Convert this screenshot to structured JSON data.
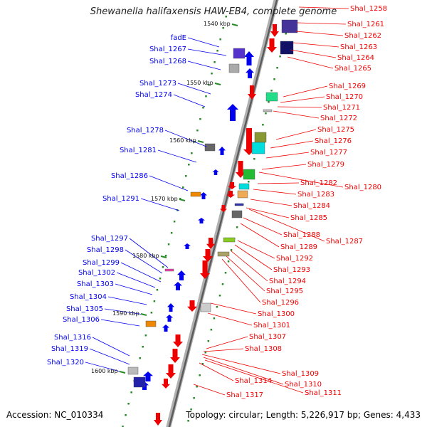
{
  "title": "Shewanella halifaxensis HAW-EB4, complete genome",
  "footer": {
    "accession": "Accession: NC_010334",
    "topology": "Topology: circular; Length: 5,226,917 bp; Genes: 4,433"
  },
  "colors": {
    "backbone": "#8a8a8a",
    "left_strand": "#0000ee",
    "right_strand": "#ee0000",
    "tick_mark": "#2a8a2a"
  },
  "ticks": [
    "1540 kbp",
    "1550 kbp",
    "1560 kbp",
    "1570 kbp",
    "1580 kbp",
    "1590 kbp",
    "1600 kbp"
  ],
  "left_genes": [
    "fadE",
    "Shal_1267",
    "Shal_1268",
    "Shal_1273",
    "Shal_1274",
    "Shal_1278",
    "Shal_1281",
    "Shal_1286",
    "Shal_1291",
    "Shal_1297",
    "Shal_1298",
    "Shal_1299",
    "Shal_1302",
    "Shal_1303",
    "Shal_1304",
    "Shal_1305",
    "Shal_1306",
    "Shal_1316",
    "Shal_1319",
    "Shal_1320"
  ],
  "right_genes": [
    "Shal_1258",
    "Shal_1261",
    "Shal_1262",
    "Shal_1263",
    "Shal_1264",
    "Shal_1265",
    "Shal_1269",
    "Shal_1270",
    "Shal_1271",
    "Shal_1272",
    "Shal_1275",
    "Shal_1276",
    "Shal_1277",
    "Shal_1279",
    "Shal_1280",
    "Shal_1282",
    "Shal_1283",
    "Shal_1284",
    "Shal_1285",
    "Shal_1287",
    "Shal_1288",
    "Shal_1289",
    "Shal_1292",
    "Shal_1293",
    "Shal_1294",
    "Shal_1295",
    "Shal_1296",
    "Shal_1300",
    "Shal_1301",
    "Shal_1307",
    "Shal_1308",
    "Shal_1309",
    "Shal_1310",
    "Shal_1311",
    "Shal_1314",
    "Shal_1317"
  ]
}
